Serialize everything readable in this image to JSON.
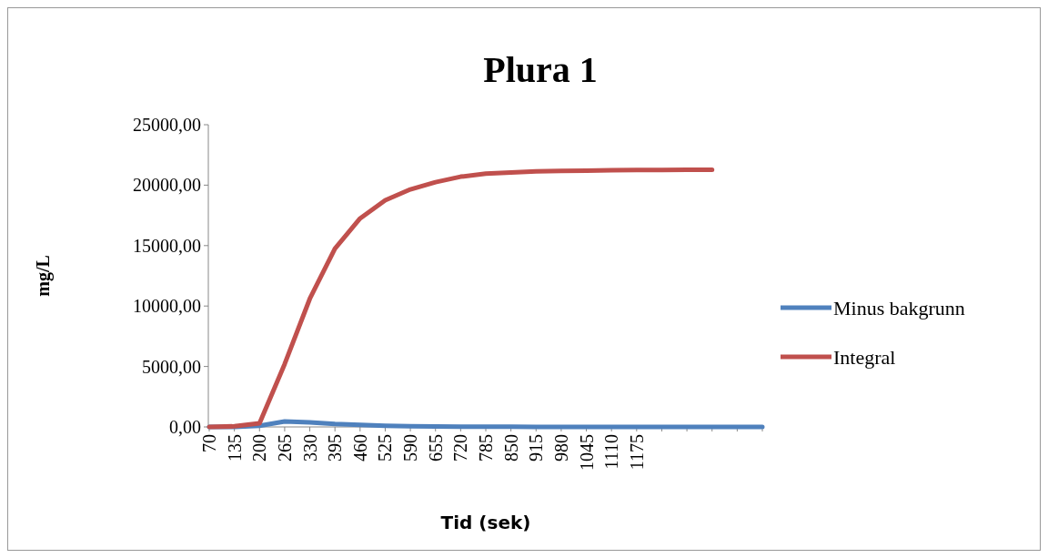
{
  "chart_data": {
    "type": "line",
    "title": "Plura 1",
    "xlabel": "Tid (sek)",
    "ylabel": "mg/L",
    "categories": [
      "70",
      "135",
      "200",
      "265",
      "330",
      "395",
      "460",
      "525",
      "590",
      "655",
      "720",
      "785",
      "850",
      "915",
      "980",
      "1045",
      "1110",
      "1175",
      null,
      null,
      null,
      null,
      null
    ],
    "series": [
      {
        "name": "Minus bakgrunn",
        "color": "#4f81bd",
        "values": [
          0,
          0,
          100,
          450,
          380,
          250,
          170,
          100,
          60,
          40,
          20,
          10,
          10,
          5,
          5,
          0,
          0,
          0,
          0,
          0,
          0,
          0,
          0
        ]
      },
      {
        "name": "Integral",
        "color": "#c0504d",
        "values": [
          0,
          50,
          300,
          5200,
          10600,
          14750,
          17250,
          18750,
          19650,
          20250,
          20700,
          20950,
          21050,
          21150,
          21180,
          21200,
          21230,
          21250,
          21260,
          21270,
          21270,
          null,
          null
        ]
      }
    ],
    "ylim": [
      0,
      25000
    ],
    "yticks": [
      {
        "value": 0,
        "label": "0,00"
      },
      {
        "value": 5000,
        "label": "5000,00"
      },
      {
        "value": 10000,
        "label": "10000,00"
      },
      {
        "value": 15000,
        "label": "15000,00"
      },
      {
        "value": 20000,
        "label": "20000,00"
      },
      {
        "value": 25000,
        "label": "25000,00"
      }
    ],
    "legend": "right",
    "grid": false,
    "marker": "none",
    "line_style": "solid"
  }
}
